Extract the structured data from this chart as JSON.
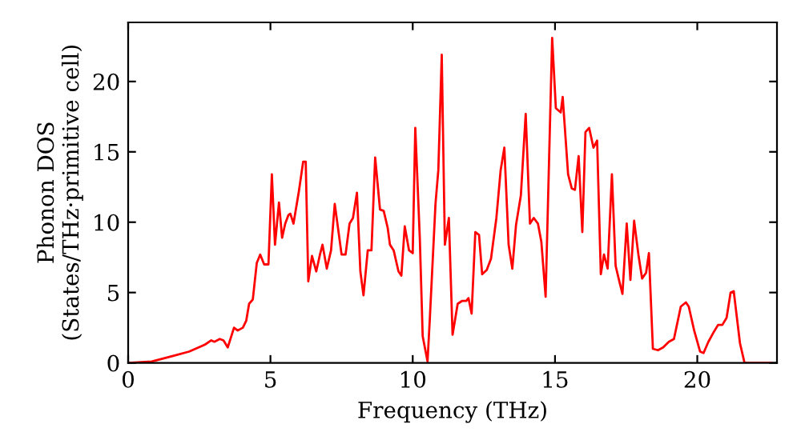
{
  "chart_data": {
    "type": "line",
    "xlabel": "Frequency (THz)",
    "ylabel": "Phonon DOS\n(States/THz·primitive cell)",
    "x": [
      0,
      0.83,
      1.58,
      2.14,
      2.7,
      2.92,
      3.03,
      3.22,
      3.35,
      3.5,
      3.72,
      3.85,
      4.03,
      4.15,
      4.25,
      4.38,
      4.52,
      4.64,
      4.78,
      4.93,
      5.05,
      5.16,
      5.3,
      5.41,
      5.52,
      5.63,
      5.7,
      5.81,
      6.0,
      6.15,
      6.24,
      6.33,
      6.46,
      6.61,
      6.74,
      6.83,
      6.98,
      7.13,
      7.26,
      7.5,
      7.64,
      7.78,
      7.9,
      8.04,
      8.16,
      8.27,
      8.42,
      8.55,
      8.68,
      8.85,
      8.98,
      9.12,
      9.2,
      9.33,
      9.5,
      9.6,
      9.72,
      9.87,
      10.0,
      10.09,
      10.25,
      10.35,
      10.52,
      10.6,
      10.8,
      10.9,
      11.02,
      11.13,
      11.27,
      11.4,
      11.58,
      11.73,
      11.88,
      11.96,
      12.07,
      12.2,
      12.33,
      12.44,
      12.6,
      12.75,
      12.94,
      13.09,
      13.22,
      13.37,
      13.5,
      13.63,
      13.8,
      13.97,
      14.12,
      14.25,
      14.4,
      14.52,
      14.67,
      14.9,
      15.03,
      15.2,
      15.27,
      15.46,
      15.59,
      15.7,
      15.83,
      15.96,
      16.07,
      16.2,
      16.35,
      16.48,
      16.61,
      16.72,
      16.85,
      17.0,
      17.13,
      17.26,
      17.37,
      17.52,
      17.65,
      17.78,
      17.93,
      18.06,
      18.2,
      18.3,
      18.44,
      18.62,
      18.8,
      19.0,
      19.18,
      19.42,
      19.6,
      19.7,
      19.89,
      20.1,
      20.22,
      20.39,
      20.58,
      20.73,
      20.88,
      21.03,
      21.17,
      21.28,
      21.5,
      21.66,
      22.6
    ],
    "series": [
      {
        "color": "#ff0000",
        "values": [
          0,
          0.1,
          0.5,
          0.8,
          1.3,
          1.6,
          1.5,
          1.7,
          1.6,
          1.1,
          2.5,
          2.3,
          2.5,
          3.0,
          4.2,
          4.5,
          7.1,
          7.7,
          7.0,
          7.0,
          13.4,
          8.4,
          11.4,
          8.9,
          9.9,
          10.5,
          10.6,
          9.9,
          12.2,
          14.3,
          14.3,
          5.8,
          7.6,
          6.5,
          7.7,
          8.4,
          6.7,
          8.0,
          11.3,
          7.7,
          7.7,
          9.9,
          10.3,
          12.1,
          6.5,
          4.8,
          8.0,
          8.0,
          14.6,
          10.9,
          10.8,
          9.6,
          8.4,
          8.0,
          6.5,
          6.2,
          9.7,
          8.0,
          7.8,
          16.7,
          8.8,
          1.9,
          0.1,
          3.1,
          11.3,
          13.7,
          21.9,
          8.4,
          10.3,
          2.0,
          4.2,
          4.4,
          4.4,
          4.6,
          3.5,
          9.3,
          9.1,
          6.3,
          6.6,
          7.4,
          10.3,
          13.7,
          15.3,
          8.4,
          6.7,
          9.8,
          11.9,
          17.7,
          9.9,
          10.3,
          9.9,
          8.6,
          4.7,
          23.1,
          18.1,
          17.8,
          18.9,
          13.4,
          12.4,
          12.3,
          14.7,
          9.3,
          16.4,
          16.7,
          15.3,
          15.8,
          6.3,
          7.7,
          6.7,
          13.4,
          6.9,
          5.8,
          4.9,
          9.9,
          5.9,
          10.1,
          7.7,
          6.0,
          6.4,
          7.8,
          1.0,
          0.9,
          1.1,
          1.5,
          1.7,
          4.0,
          4.3,
          4.0,
          2.3,
          0.8,
          0.7,
          1.5,
          2.2,
          2.7,
          2.7,
          3.2,
          5.0,
          5.1,
          1.4,
          0.0,
          0.0
        ]
      }
    ],
    "xlim": [
      0,
      22.8
    ],
    "ylim": [
      0,
      24.2
    ],
    "xticks": [
      0,
      5,
      10,
      15,
      20
    ],
    "yticks": [
      0,
      5,
      10,
      15,
      20
    ],
    "grid": false,
    "legend": false,
    "line_style": "solid",
    "marker": "none"
  }
}
